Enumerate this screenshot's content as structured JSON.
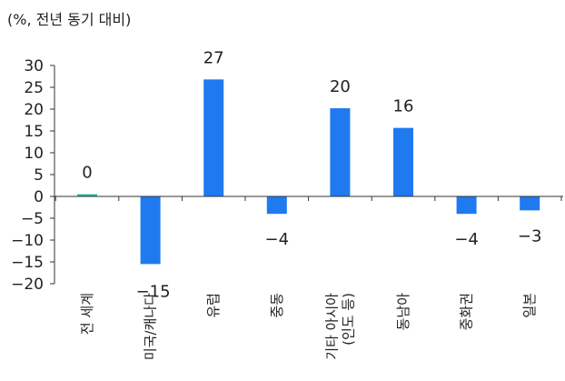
{
  "unit_label": "(%, 전년 동기 대비)",
  "chart_data": {
    "type": "bar",
    "categories": [
      [
        "전 세계"
      ],
      [
        "미국/캐나다"
      ],
      [
        "유럽"
      ],
      [
        "중동"
      ],
      [
        "기타 아시아",
        "(인도 등)"
      ],
      [
        "동남아"
      ],
      [
        "중화권"
      ],
      [
        "일본"
      ]
    ],
    "values": [
      0.5,
      -15.5,
      26.8,
      -4.0,
      20.2,
      15.7,
      -4.0,
      -3.2
    ],
    "data_labels": [
      "0",
      "-15",
      "27",
      "-4",
      "20",
      "16",
      "-4",
      "-3"
    ],
    "ylim": [
      -20,
      30
    ],
    "yticks": [
      30,
      25,
      20,
      15,
      10,
      5,
      0,
      -5,
      -10,
      -15,
      -20
    ],
    "ytick_labels": [
      "30",
      "25",
      "20",
      "15",
      "10",
      "5",
      "0",
      "-5",
      "-10",
      "-15",
      "-20"
    ],
    "colors": {
      "world": "#2ab3a6",
      "others": "#1f7af0",
      "axis": "#333333"
    },
    "grid": false,
    "legend": "none"
  }
}
